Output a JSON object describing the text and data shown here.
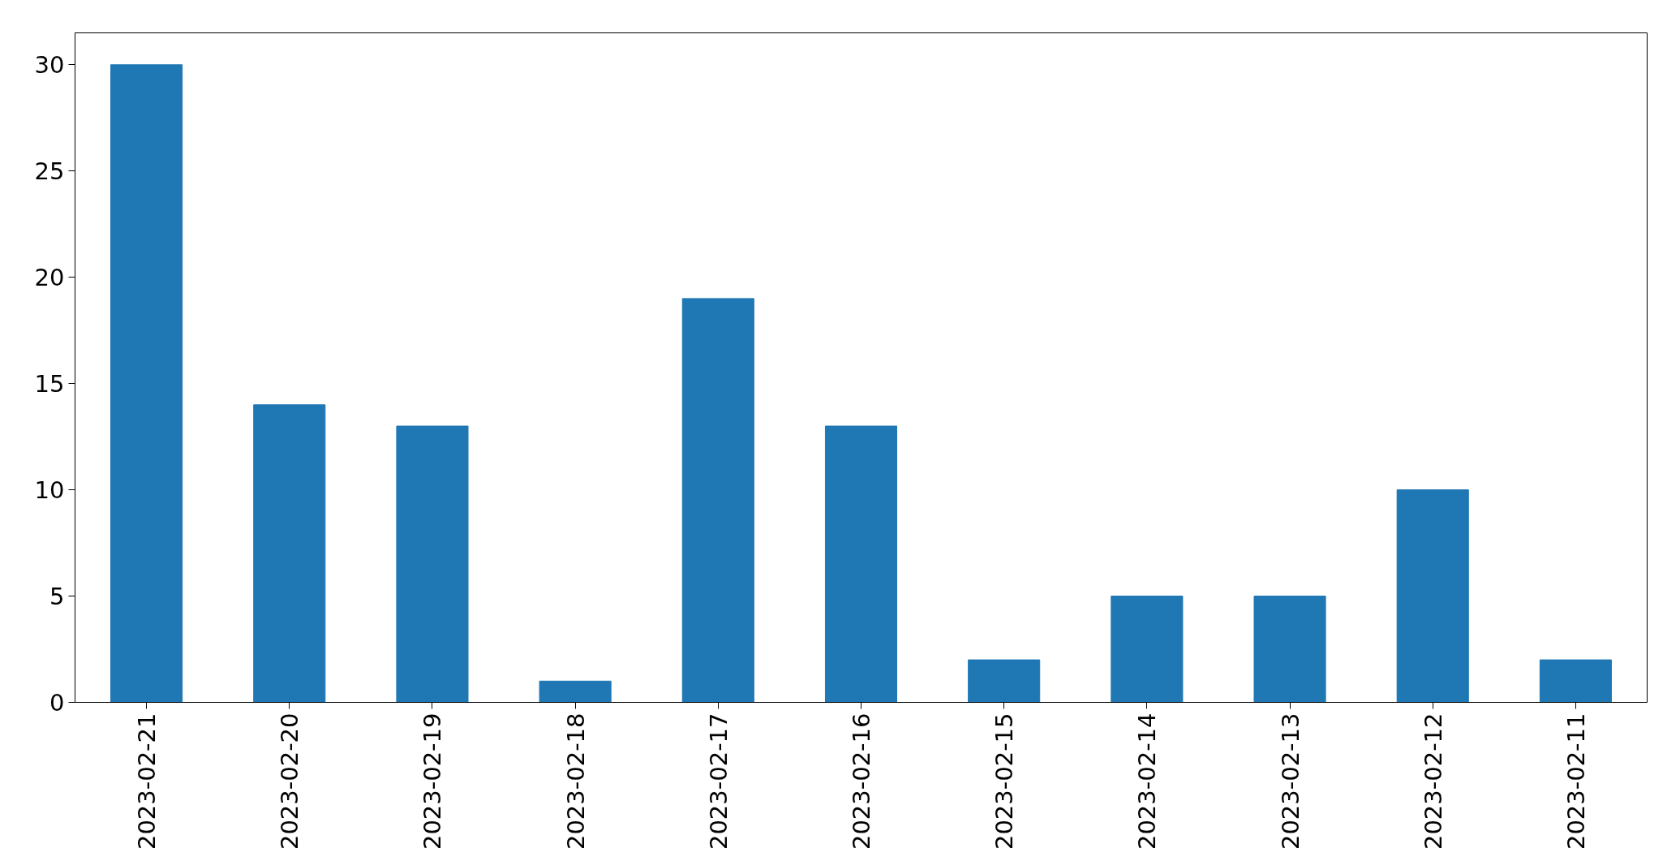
{
  "chart_data": {
    "type": "bar",
    "categories": [
      "2023-02-21",
      "2023-02-20",
      "2023-02-19",
      "2023-02-18",
      "2023-02-17",
      "2023-02-16",
      "2023-02-15",
      "2023-02-14",
      "2023-02-13",
      "2023-02-12",
      "2023-02-11"
    ],
    "values": [
      30,
      14,
      13,
      1,
      19,
      13,
      2,
      5,
      5,
      10,
      2
    ],
    "color": "#1f77b4",
    "ylim": [
      0,
      31.5
    ],
    "yticks": [
      0,
      5,
      10,
      15,
      20,
      25,
      30
    ],
    "grid": false
  }
}
